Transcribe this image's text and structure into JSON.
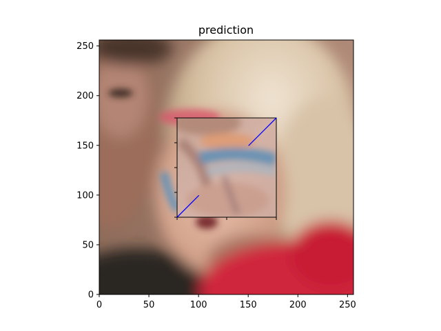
{
  "chart_data": {
    "type": "image",
    "title": "prediction",
    "xlabel": "",
    "ylabel": "",
    "xlim": [
      0,
      256
    ],
    "ylim": [
      0,
      256
    ],
    "x_ticks": [
      0,
      50,
      100,
      150,
      200,
      250
    ],
    "y_ticks": [
      0,
      50,
      100,
      150,
      200,
      250
    ],
    "inset": {
      "xlim": [
        78,
        178
      ],
      "ylim": [
        78,
        178
      ],
      "x_ticks": [
        78,
        128,
        178
      ],
      "y_ticks": [
        78,
        103,
        128,
        153,
        178
      ],
      "line_color": "#0000ff",
      "lines": [
        {
          "x": [
            78,
            100
          ],
          "y": [
            78,
            100
          ]
        },
        {
          "x": [
            150,
            178
          ],
          "y": [
            150,
            178
          ]
        }
      ]
    },
    "grid": false
  }
}
